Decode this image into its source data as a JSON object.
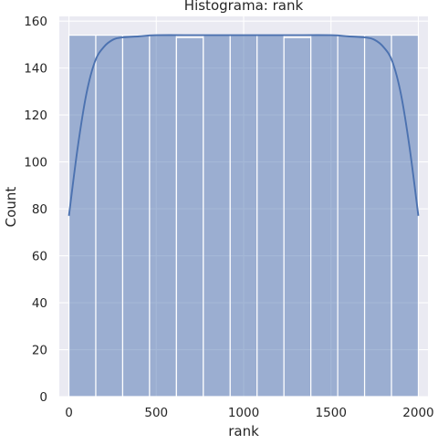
{
  "chart_data": {
    "type": "bar",
    "title": "Histograma: rank",
    "xlabel": "rank",
    "ylabel": "Count",
    "xlim": [
      -55,
      2055
    ],
    "ylim": [
      0,
      162
    ],
    "xticks": [
      0,
      500,
      1000,
      1500,
      2000
    ],
    "yticks": [
      0,
      20,
      40,
      60,
      80,
      100,
      120,
      140,
      160
    ],
    "grid": true,
    "legend": "none",
    "bins": [
      {
        "x0": 0,
        "x1": 153.85,
        "count": 154
      },
      {
        "x0": 153.85,
        "x1": 307.69,
        "count": 154
      },
      {
        "x0": 307.69,
        "x1": 461.54,
        "count": 154
      },
      {
        "x0": 461.54,
        "x1": 615.38,
        "count": 154
      },
      {
        "x0": 615.38,
        "x1": 769.23,
        "count": 153
      },
      {
        "x0": 769.23,
        "x1": 923.08,
        "count": 154
      },
      {
        "x0": 923.08,
        "x1": 1076.92,
        "count": 154
      },
      {
        "x0": 1076.92,
        "x1": 1230.77,
        "count": 154
      },
      {
        "x0": 1230.77,
        "x1": 1384.62,
        "count": 153
      },
      {
        "x0": 1384.62,
        "x1": 1538.46,
        "count": 154
      },
      {
        "x0": 1538.46,
        "x1": 1692.31,
        "count": 154
      },
      {
        "x0": 1692.31,
        "x1": 1846.15,
        "count": 154
      },
      {
        "x0": 1846.15,
        "x1": 2000,
        "count": 154
      }
    ],
    "kde": {
      "x": [
        0,
        50,
        100,
        150,
        200,
        250,
        300,
        400,
        500,
        750,
        1000,
        1250,
        1500,
        1600,
        1700,
        1750,
        1800,
        1850,
        1900,
        1950,
        2000
      ],
      "y": [
        77,
        106,
        129,
        143,
        149,
        152,
        153,
        153.5,
        154,
        154,
        154,
        154,
        154,
        153.5,
        153,
        152,
        149,
        143,
        129,
        106,
        77
      ]
    },
    "colors": {
      "background": "#eaeaf2",
      "grid": "#ffffff",
      "bar_fill": "#4c72b0",
      "bar_fill_opacity": 0.5,
      "bar_edge": "#ffffff",
      "kde_line": "#4c72b0"
    }
  }
}
